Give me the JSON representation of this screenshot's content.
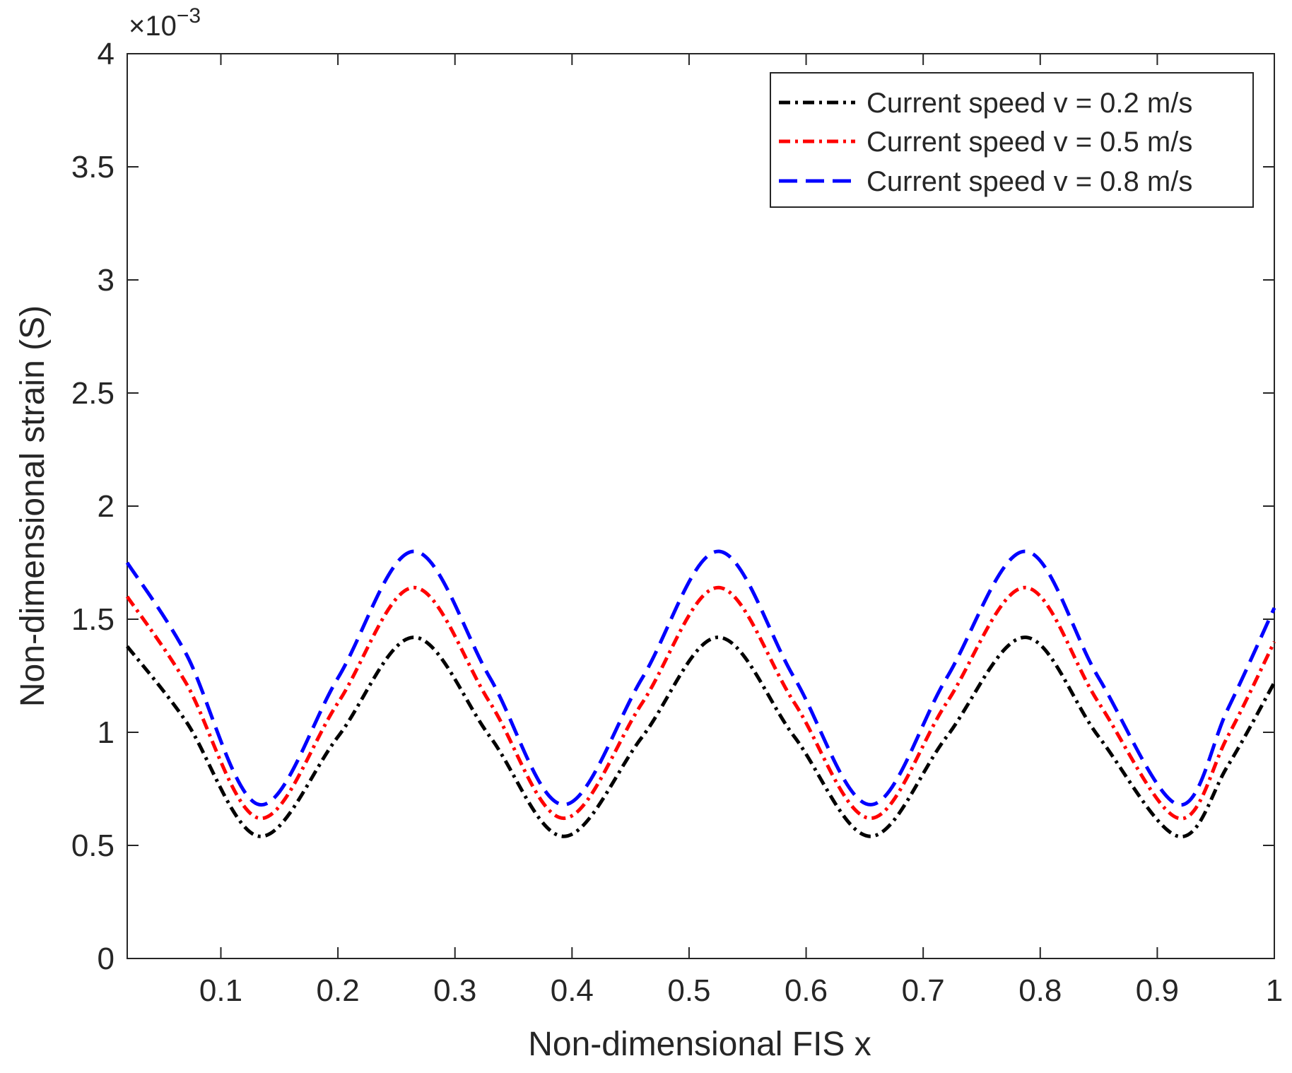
{
  "chart_data": {
    "type": "line",
    "title": "",
    "xlabel": "Non-dimensional FIS x",
    "ylabel": "Non-dimensional strain (S)",
    "y_exponent_label": "×10",
    "y_exponent_power": "−3",
    "xlim": [
      0.02,
      1.0
    ],
    "ylim": [
      0,
      4
    ],
    "x_ticks": [
      0.1,
      0.2,
      0.3,
      0.4,
      0.5,
      0.6,
      0.7,
      0.8,
      0.9,
      1.0
    ],
    "x_tick_labels": [
      "0.1",
      "0.2",
      "0.3",
      "0.4",
      "0.5",
      "0.6",
      "0.7",
      "0.8",
      "0.9",
      "1"
    ],
    "y_ticks": [
      0,
      0.5,
      1,
      1.5,
      2,
      2.5,
      3,
      3.5,
      4
    ],
    "y_tick_labels": [
      "0",
      "0.5",
      "1",
      "1.5",
      "2",
      "2.5",
      "3",
      "3.5",
      "4"
    ],
    "y_unit_scale": "1e-3",
    "grid": false,
    "legend_position": "top-right",
    "x": [
      0.02,
      0.07,
      0.133,
      0.2,
      0.265,
      0.33,
      0.393,
      0.46,
      0.525,
      0.59,
      0.655,
      0.72,
      0.787,
      0.85,
      0.918,
      0.96,
      1.0
    ],
    "series": [
      {
        "name": "Current speed v = 0.2 m/s",
        "color": "#000000",
        "line_style": "dash-dot",
        "values": [
          1.38,
          1.05,
          0.54,
          0.98,
          1.42,
          0.98,
          0.54,
          0.98,
          1.42,
          0.98,
          0.54,
          0.98,
          1.42,
          0.98,
          0.54,
          0.85,
          1.22
        ]
      },
      {
        "name": "Current speed v = 0.5 m/s",
        "color": "#ff0000",
        "line_style": "dash-dot",
        "values": [
          1.6,
          1.22,
          0.62,
          1.13,
          1.64,
          1.13,
          0.62,
          1.13,
          1.64,
          1.13,
          0.62,
          1.13,
          1.64,
          1.13,
          0.62,
          0.98,
          1.4
        ]
      },
      {
        "name": "Current speed v = 0.8 m/s",
        "color": "#0000ff",
        "line_style": "dash",
        "values": [
          1.75,
          1.35,
          0.68,
          1.24,
          1.8,
          1.24,
          0.68,
          1.24,
          1.8,
          1.24,
          0.68,
          1.24,
          1.8,
          1.24,
          0.68,
          1.1,
          1.55
        ]
      }
    ]
  }
}
